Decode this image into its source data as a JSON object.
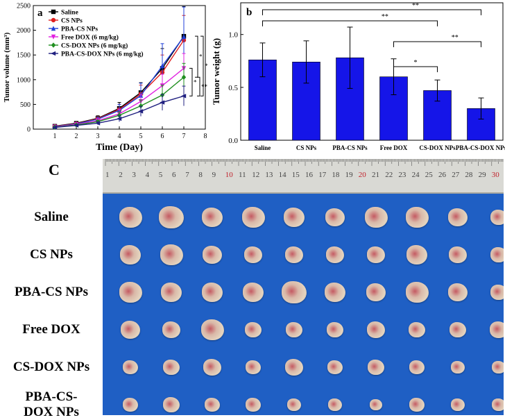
{
  "chart_data": [
    {
      "panel": "a",
      "type": "line",
      "xlabel": "Time (Day)",
      "ylabel": "Tumor volume (mm³)",
      "xlim": [
        0,
        8
      ],
      "ylim": [
        0,
        2500
      ],
      "xticks": [
        1,
        2,
        3,
        4,
        5,
        6,
        7,
        8
      ],
      "yticks": [
        0,
        500,
        1000,
        1500,
        2000,
        2500
      ],
      "x": [
        1,
        2,
        3,
        4,
        5,
        6,
        7
      ],
      "series": [
        {
          "name": "Saline",
          "color": "#000000",
          "marker": "square",
          "values": [
            60,
            120,
            220,
            420,
            740,
            1230,
            1880
          ],
          "err": [
            20,
            30,
            50,
            120,
            200,
            400,
            600
          ]
        },
        {
          "name": "CS NPs",
          "color": "#e02020",
          "marker": "circle",
          "values": [
            55,
            110,
            210,
            400,
            710,
            1150,
            1800
          ],
          "err": [
            20,
            30,
            40,
            100,
            180,
            350,
            500
          ]
        },
        {
          "name": "PBA-CS NPs",
          "color": "#1f3fd8",
          "marker": "triangle-up",
          "values": [
            50,
            105,
            200,
            380,
            680,
            1280,
            1870
          ],
          "err": [
            20,
            30,
            40,
            120,
            250,
            450,
            600
          ]
        },
        {
          "name": "Free DOX (6 mg/kg)",
          "color": "#e020e0",
          "marker": "triangle-down",
          "values": [
            45,
            95,
            170,
            310,
            560,
            880,
            1230
          ],
          "err": [
            15,
            25,
            40,
            90,
            140,
            230,
            300
          ]
        },
        {
          "name": "CS-DOX NPs (6 mg/kg)",
          "color": "#208f20",
          "marker": "diamond",
          "values": [
            40,
            85,
            150,
            280,
            470,
            690,
            1050
          ],
          "err": [
            15,
            20,
            30,
            70,
            120,
            200,
            280
          ]
        },
        {
          "name": "PBA-CS-DOX NPs (6 mg/kg)",
          "color": "#202080",
          "marker": "triangle-left",
          "values": [
            35,
            75,
            120,
            210,
            360,
            540,
            670
          ],
          "err": [
            10,
            20,
            30,
            60,
            100,
            160,
            200
          ]
        }
      ],
      "significance": [
        {
          "label": "**",
          "between": [
            "Saline",
            "PBA-CS-DOX NPs (6 mg/kg)"
          ]
        },
        {
          "label": "*",
          "between": [
            "Saline",
            "CS-DOX NPs (6 mg/kg)"
          ]
        },
        {
          "label": "*",
          "between": [
            "Free DOX (6 mg/kg)",
            "PBA-CS-DOX NPs (6 mg/kg)"
          ]
        },
        {
          "label": "**",
          "between": [
            "CS-DOX NPs (6 mg/kg)",
            "PBA-CS-DOX NPs (6 mg/kg)"
          ]
        }
      ]
    },
    {
      "panel": "b",
      "type": "bar",
      "xlabel": "",
      "ylabel": "Tumor weight (g)",
      "ylim": [
        0,
        1.3
      ],
      "yticks": [
        "0.0",
        "0.5",
        "1.0"
      ],
      "categories": [
        "Saline",
        "CS NPs",
        "PBA-CS NPs",
        "Free DOX",
        "CS-DOX NPs",
        "PBA-CS-DOX NPs"
      ],
      "values": [
        0.76,
        0.74,
        0.78,
        0.6,
        0.47,
        0.3
      ],
      "err": [
        0.16,
        0.2,
        0.29,
        0.17,
        0.1,
        0.1
      ],
      "bar_color": "#1515e8",
      "significance": [
        {
          "label": "**",
          "from": "Saline",
          "to": "PBA-CS-DOX NPs"
        },
        {
          "label": "**",
          "from": "Saline",
          "to": "CS-DOX NPs"
        },
        {
          "label": "**",
          "from": "Free DOX",
          "to": "PBA-CS-DOX NPs"
        },
        {
          "label": "*",
          "from": "Free DOX",
          "to": "CS-DOX NPs"
        }
      ]
    }
  ],
  "panels": {
    "a": "a",
    "b": "b",
    "c": "C"
  },
  "photo": {
    "ruler_numbers": [
      "1",
      "2",
      "3",
      "4",
      "5",
      "6",
      "7",
      "8",
      "9",
      "10",
      "11",
      "12",
      "13",
      "14",
      "15",
      "16",
      "17",
      "18",
      "19",
      "20",
      "21",
      "22",
      "23",
      "24",
      "25",
      "26",
      "27",
      "28",
      "29",
      "30"
    ],
    "red_numbers": [
      "10",
      "20",
      "30"
    ],
    "rows": [
      "Saline",
      "CS NPs",
      "PBA-CS NPs",
      "Free DOX",
      "CS-DOX NPs",
      "PBA-CS-\nDOX NPs"
    ],
    "tumor_sizes": [
      [
        30,
        32,
        28,
        30,
        28,
        26,
        30,
        30,
        26,
        22
      ],
      [
        28,
        30,
        26,
        24,
        24,
        24,
        24,
        28,
        24,
        22
      ],
      [
        30,
        28,
        28,
        28,
        32,
        28,
        26,
        30,
        26,
        22
      ],
      [
        26,
        24,
        30,
        22,
        22,
        22,
        24,
        22,
        22,
        24
      ],
      [
        20,
        22,
        24,
        20,
        24,
        20,
        22,
        20,
        18,
        18
      ],
      [
        20,
        22,
        20,
        20,
        18,
        18,
        16,
        20,
        18,
        18
      ]
    ],
    "background_color": "#1f5fc4"
  }
}
